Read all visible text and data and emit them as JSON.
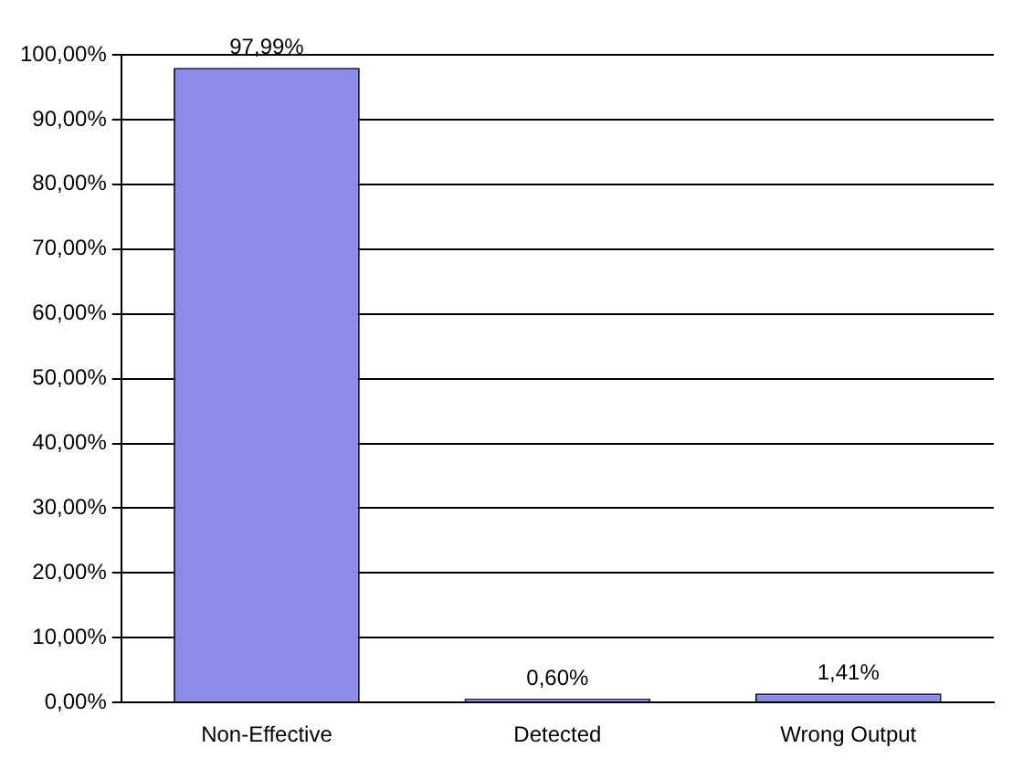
{
  "chart_data": {
    "type": "bar",
    "categories": [
      "Non-Effective",
      "Detected",
      "Wrong Output"
    ],
    "values": [
      97.99,
      0.6,
      1.41
    ],
    "color": "#8c8ce8",
    "value_labels": [
      "97,99%",
      "0,60%",
      "1,41%"
    ],
    "ylim": [
      0,
      100
    ],
    "yticks": [
      {
        "value": 0,
        "label": "0,00%"
      },
      {
        "value": 10,
        "label": "10,00%"
      },
      {
        "value": 20,
        "label": "20,00%"
      },
      {
        "value": 30,
        "label": "30,00%"
      },
      {
        "value": 40,
        "label": "40,00%"
      },
      {
        "value": 50,
        "label": "50,00%"
      },
      {
        "value": 60,
        "label": "60,00%"
      },
      {
        "value": 70,
        "label": "70,00%"
      },
      {
        "value": 80,
        "label": "80,00%"
      },
      {
        "value": 90,
        "label": "90,00%"
      },
      {
        "value": 100,
        "label": "100,00%"
      }
    ],
    "grid": "y",
    "legend": false
  }
}
